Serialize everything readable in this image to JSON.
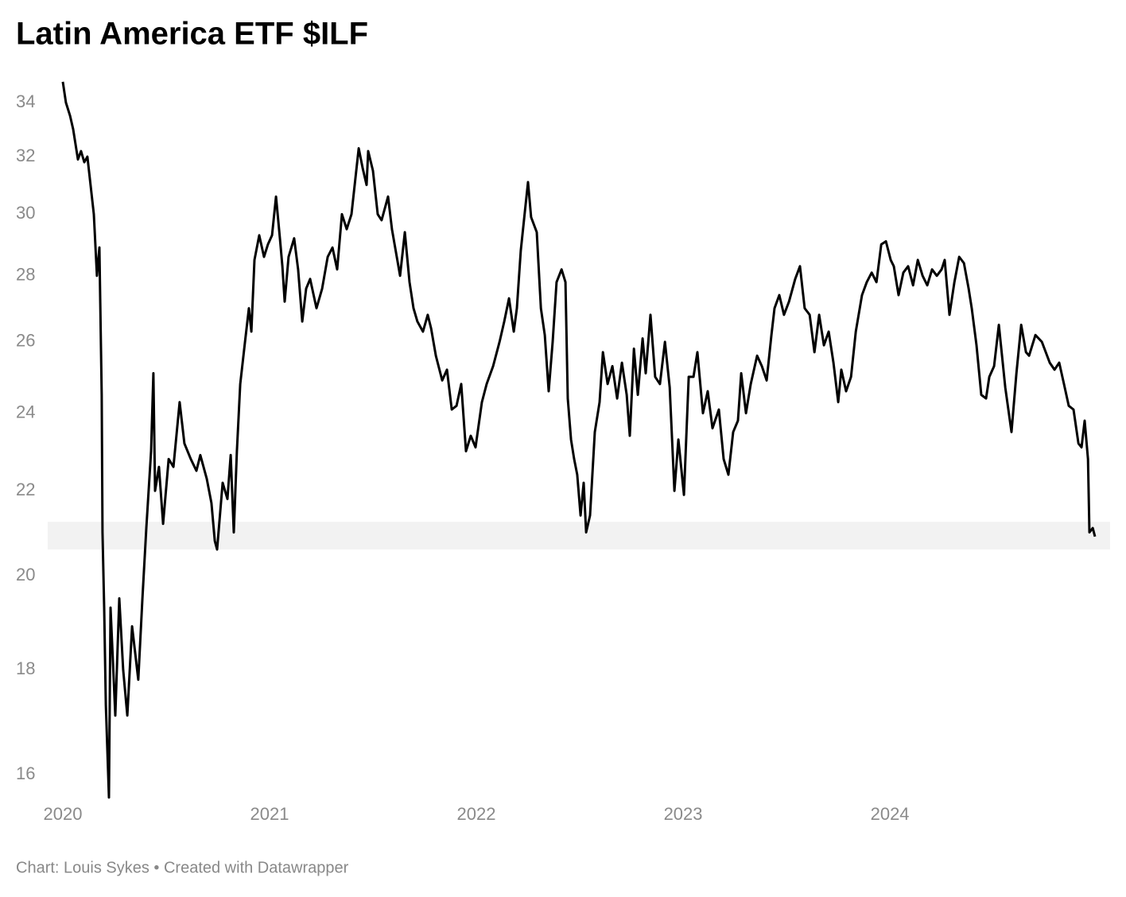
{
  "chart_data": {
    "type": "line",
    "title": "Latin America ETF $ILF",
    "source": "Chart: Louis Sykes • Created with Datawrapper",
    "color": "#000000",
    "log_scale": true,
    "grid": false,
    "band": [
      20.6,
      21.25
    ],
    "band_color": "#f2f2f2",
    "xlim": [
      2019.927,
      2025.065
    ],
    "xticks": [
      2020,
      2021,
      2022,
      2023,
      2024
    ],
    "ylim": [
      15.5,
      35
    ],
    "yticks": [
      16,
      18,
      20,
      22,
      24,
      26,
      28,
      30,
      32,
      34
    ],
    "x": [
      2020,
      2020.015,
      2020.035,
      2020.05,
      2020.073,
      2020.088,
      2020.104,
      2020.119,
      2020.15,
      2020.165,
      2020.177,
      2020.188,
      2020.192,
      2020.2,
      2020.208,
      2020.223,
      2020.231,
      2020.254,
      2020.273,
      2020.292,
      2020.312,
      2020.335,
      2020.365,
      2020.385,
      2020.404,
      2020.427,
      2020.438,
      2020.446,
      2020.465,
      2020.485,
      2020.512,
      2020.535,
      2020.565,
      2020.588,
      2020.619,
      2020.646,
      2020.665,
      2020.696,
      2020.719,
      2020.735,
      2020.746,
      2020.773,
      2020.796,
      2020.812,
      2020.827,
      2020.842,
      2020.858,
      2020.881,
      2020.9,
      2020.912,
      2020.927,
      2020.95,
      2020.973,
      2020.992,
      2021.012,
      2021.031,
      2021.05,
      2021.062,
      2021.073,
      2021.092,
      2021.119,
      2021.138,
      2021.158,
      2021.177,
      2021.196,
      2021.227,
      2021.254,
      2021.281,
      2021.304,
      2021.327,
      2021.35,
      2021.373,
      2021.396,
      2021.419,
      2021.431,
      2021.45,
      2021.469,
      2021.477,
      2021.5,
      2021.523,
      2021.542,
      2021.573,
      2021.592,
      2021.631,
      2021.654,
      2021.677,
      2021.696,
      2021.715,
      2021.742,
      2021.765,
      2021.781,
      2021.804,
      2021.835,
      2021.858,
      2021.881,
      2021.904,
      2021.927,
      2021.95,
      2021.973,
      2021.996,
      2022.027,
      2022.05,
      2022.081,
      2022.112,
      2022.135,
      2022.158,
      2022.181,
      2022.196,
      2022.215,
      2022.235,
      2022.25,
      2022.265,
      2022.292,
      2022.312,
      2022.331,
      2022.35,
      2022.369,
      2022.388,
      2022.412,
      2022.431,
      2022.442,
      2022.458,
      2022.473,
      2022.488,
      2022.504,
      2022.519,
      2022.531,
      2022.55,
      2022.573,
      2022.596,
      2022.612,
      2022.635,
      2022.658,
      2022.681,
      2022.704,
      2022.727,
      2022.742,
      2022.762,
      2022.781,
      2022.804,
      2022.819,
      2022.842,
      2022.865,
      2022.888,
      2022.912,
      2022.935,
      2022.958,
      2022.977,
      2023.004,
      2023.027,
      2023.05,
      2023.069,
      2023.096,
      2023.119,
      2023.142,
      2023.173,
      2023.196,
      2023.219,
      2023.242,
      2023.265,
      2023.281,
      2023.304,
      2023.327,
      2023.358,
      2023.381,
      2023.404,
      2023.427,
      2023.442,
      2023.465,
      2023.488,
      2023.512,
      2023.542,
      2023.565,
      2023.588,
      2023.612,
      2023.635,
      2023.658,
      2023.681,
      2023.704,
      2023.727,
      2023.75,
      2023.765,
      2023.788,
      2023.812,
      2023.835,
      2023.865,
      2023.888,
      2023.912,
      2023.935,
      2023.958,
      2023.981,
      2024.004,
      2024.019,
      2024.042,
      2024.065,
      2024.088,
      2024.112,
      2024.135,
      2024.158,
      2024.181,
      2024.204,
      2024.227,
      2024.25,
      2024.265,
      2024.288,
      2024.312,
      2024.335,
      2024.358,
      2024.381,
      2024.396,
      2024.419,
      2024.442,
      2024.465,
      2024.481,
      2024.504,
      2024.527,
      2024.558,
      2024.588,
      2024.612,
      2024.635,
      2024.658,
      2024.673,
      2024.704,
      2024.735,
      2024.773,
      2024.796,
      2024.819,
      2024.842,
      2024.865,
      2024.888,
      2024.912,
      2024.927,
      2024.942,
      2024.958,
      2024.965,
      2024.981,
      2024.992
    ],
    "values": [
      34.8,
      34.0,
      33.5,
      33.0,
      31.9,
      32.2,
      31.8,
      32.0,
      30.0,
      28.0,
      28.9,
      24.5,
      21.0,
      19.3,
      17.3,
      15.6,
      19.3,
      17.1,
      19.5,
      18.0,
      17.1,
      18.9,
      17.8,
      19.5,
      21.1,
      23.0,
      25.1,
      22.0,
      22.6,
      21.2,
      22.8,
      22.6,
      24.3,
      23.2,
      22.8,
      22.5,
      22.9,
      22.3,
      21.7,
      20.8,
      20.6,
      22.2,
      21.8,
      22.9,
      21.0,
      23.0,
      24.8,
      26.0,
      27.0,
      26.3,
      28.5,
      29.3,
      28.6,
      29.0,
      29.3,
      30.6,
      29.2,
      28.3,
      27.2,
      28.6,
      29.2,
      28.2,
      26.6,
      27.6,
      27.9,
      27.0,
      27.6,
      28.6,
      28.9,
      28.2,
      30.0,
      29.5,
      30.0,
      31.5,
      32.3,
      31.6,
      31.0,
      32.2,
      31.5,
      30.0,
      29.8,
      30.6,
      29.5,
      28.0,
      29.4,
      27.8,
      27.0,
      26.6,
      26.3,
      26.8,
      26.4,
      25.6,
      24.9,
      25.2,
      24.1,
      24.2,
      24.8,
      23.0,
      23.4,
      23.1,
      24.3,
      24.8,
      25.3,
      26.0,
      26.6,
      27.3,
      26.3,
      27.0,
      28.8,
      30.1,
      31.1,
      29.9,
      29.4,
      27.0,
      26.2,
      24.6,
      26.0,
      27.8,
      28.2,
      27.8,
      24.4,
      23.3,
      22.8,
      22.4,
      21.4,
      22.2,
      21.0,
      21.4,
      23.5,
      24.3,
      25.7,
      24.8,
      25.3,
      24.4,
      25.4,
      24.5,
      23.4,
      25.8,
      24.5,
      26.1,
      25.1,
      26.8,
      25.0,
      24.8,
      26.0,
      24.7,
      22.0,
      23.3,
      21.9,
      25.0,
      25.0,
      25.7,
      24.0,
      24.6,
      23.6,
      24.1,
      22.8,
      22.4,
      23.5,
      23.8,
      25.1,
      24.0,
      24.8,
      25.6,
      25.3,
      24.9,
      26.2,
      27.0,
      27.4,
      26.8,
      27.2,
      27.9,
      28.3,
      27.0,
      26.8,
      25.7,
      26.8,
      25.9,
      26.3,
      25.4,
      24.3,
      25.2,
      24.6,
      25.0,
      26.3,
      27.4,
      27.8,
      28.1,
      27.8,
      29.0,
      29.1,
      28.5,
      28.3,
      27.4,
      28.1,
      28.3,
      27.7,
      28.5,
      28.0,
      27.7,
      28.2,
      28.0,
      28.2,
      28.5,
      26.8,
      27.8,
      28.6,
      28.4,
      27.6,
      27.0,
      25.9,
      24.5,
      24.4,
      25.0,
      25.3,
      26.5,
      24.7,
      23.5,
      25.1,
      26.5,
      25.7,
      25.6,
      26.2,
      26.0,
      25.4,
      25.2,
      25.4,
      24.8,
      24.2,
      24.1,
      23.2,
      23.1,
      23.8,
      22.8,
      21.0,
      21.1,
      20.9
    ]
  }
}
